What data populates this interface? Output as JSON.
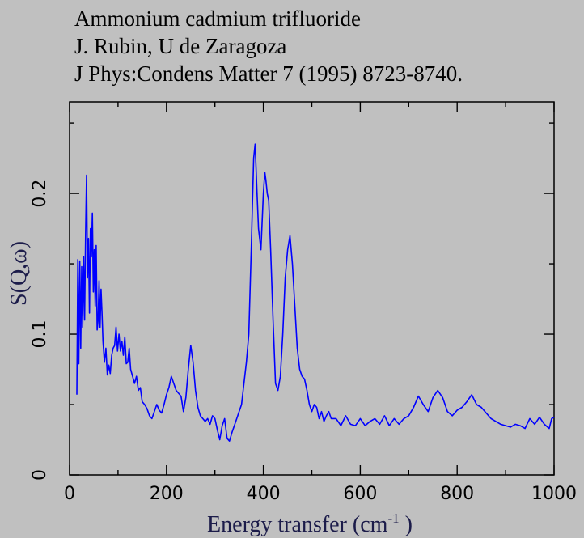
{
  "chart_data": {
    "type": "line",
    "title": "Ammonium cadmium trifluoride",
    "subtitle_lines": [
      "J. Rubin, U de Zaragoza",
      "J Phys:Condens Matter 7 (1995) 8723-8740."
    ],
    "xlabel": "Energy transfer (cm",
    "xlabel_sup": "-1",
    "xlabel_end": " )",
    "ylabel": "S(Q,ω)",
    "xlim": [
      0,
      1000
    ],
    "ylim": [
      0,
      0.265
    ],
    "xticks": [
      0,
      200,
      400,
      600,
      800,
      1000
    ],
    "xtick_labels": [
      "0",
      "200",
      "400",
      "600",
      "800",
      "1000"
    ],
    "yticks": [
      0,
      0.1,
      0.2
    ],
    "ytick_labels": [
      "0",
      "0.1",
      "0.2"
    ],
    "grid": false,
    "line_color": "#0000ff",
    "series": [
      {
        "x": [
          15,
          17,
          19,
          21,
          23,
          25,
          27,
          29,
          31,
          33,
          35,
          37,
          39,
          41,
          43,
          45,
          47,
          49,
          51,
          53,
          55,
          57,
          59,
          61,
          63,
          65,
          67,
          69,
          72,
          75,
          78,
          81,
          84,
          87,
          90,
          93,
          96,
          99,
          102,
          105,
          108,
          111,
          114,
          117,
          120,
          123,
          126,
          130,
          134,
          138,
          142,
          146,
          150,
          155,
          160,
          165,
          170,
          175,
          180,
          185,
          190,
          195,
          200,
          205,
          210,
          215,
          220,
          225,
          230,
          235,
          240,
          245,
          250,
          255,
          260,
          265,
          270,
          275,
          280,
          285,
          290,
          295,
          300,
          305,
          310,
          315,
          320,
          325,
          330,
          335,
          340,
          345,
          350,
          355,
          360,
          365,
          370,
          375,
          380,
          383,
          387,
          390,
          395,
          400,
          403,
          405,
          408,
          411,
          415,
          420,
          425,
          430,
          435,
          440,
          445,
          450,
          455,
          460,
          465,
          470,
          475,
          480,
          485,
          490,
          495,
          500,
          505,
          510,
          515,
          520,
          525,
          530,
          535,
          540,
          550,
          560,
          570,
          580,
          590,
          600,
          610,
          620,
          630,
          640,
          650,
          660,
          670,
          680,
          690,
          700,
          710,
          720,
          730,
          740,
          750,
          760,
          770,
          780,
          790,
          800,
          810,
          820,
          830,
          840,
          850,
          860,
          870,
          880,
          890,
          900,
          910,
          920,
          930,
          940,
          950,
          960,
          970,
          980,
          990,
          995,
          1000
        ],
        "y": [
          0.057,
          0.153,
          0.079,
          0.152,
          0.09,
          0.148,
          0.105,
          0.155,
          0.11,
          0.17,
          0.213,
          0.14,
          0.168,
          0.115,
          0.175,
          0.155,
          0.186,
          0.13,
          0.16,
          0.12,
          0.163,
          0.103,
          0.11,
          0.138,
          0.105,
          0.132,
          0.115,
          0.095,
          0.08,
          0.09,
          0.071,
          0.078,
          0.072,
          0.085,
          0.09,
          0.092,
          0.105,
          0.088,
          0.1,
          0.088,
          0.095,
          0.085,
          0.098,
          0.079,
          0.08,
          0.09,
          0.075,
          0.07,
          0.065,
          0.07,
          0.06,
          0.062,
          0.052,
          0.05,
          0.047,
          0.042,
          0.04,
          0.045,
          0.05,
          0.046,
          0.044,
          0.05,
          0.057,
          0.062,
          0.07,
          0.065,
          0.06,
          0.058,
          0.056,
          0.045,
          0.055,
          0.075,
          0.092,
          0.08,
          0.06,
          0.048,
          0.042,
          0.04,
          0.038,
          0.04,
          0.036,
          0.042,
          0.04,
          0.032,
          0.025,
          0.035,
          0.04,
          0.026,
          0.024,
          0.03,
          0.035,
          0.04,
          0.045,
          0.05,
          0.065,
          0.08,
          0.1,
          0.16,
          0.225,
          0.235,
          0.2,
          0.175,
          0.16,
          0.2,
          0.215,
          0.21,
          0.2,
          0.195,
          0.16,
          0.11,
          0.065,
          0.06,
          0.07,
          0.1,
          0.14,
          0.16,
          0.17,
          0.15,
          0.12,
          0.09,
          0.075,
          0.07,
          0.068,
          0.06,
          0.05,
          0.045,
          0.05,
          0.048,
          0.04,
          0.045,
          0.038,
          0.042,
          0.045,
          0.04,
          0.04,
          0.035,
          0.042,
          0.036,
          0.035,
          0.04,
          0.035,
          0.038,
          0.04,
          0.036,
          0.042,
          0.035,
          0.04,
          0.036,
          0.04,
          0.042,
          0.048,
          0.056,
          0.05,
          0.045,
          0.055,
          0.06,
          0.055,
          0.045,
          0.042,
          0.046,
          0.048,
          0.052,
          0.057,
          0.05,
          0.048,
          0.044,
          0.04,
          0.038,
          0.036,
          0.035,
          0.034,
          0.036,
          0.035,
          0.033,
          0.04,
          0.036,
          0.041,
          0.036,
          0.033,
          0.04,
          0.041
        ]
      }
    ]
  }
}
